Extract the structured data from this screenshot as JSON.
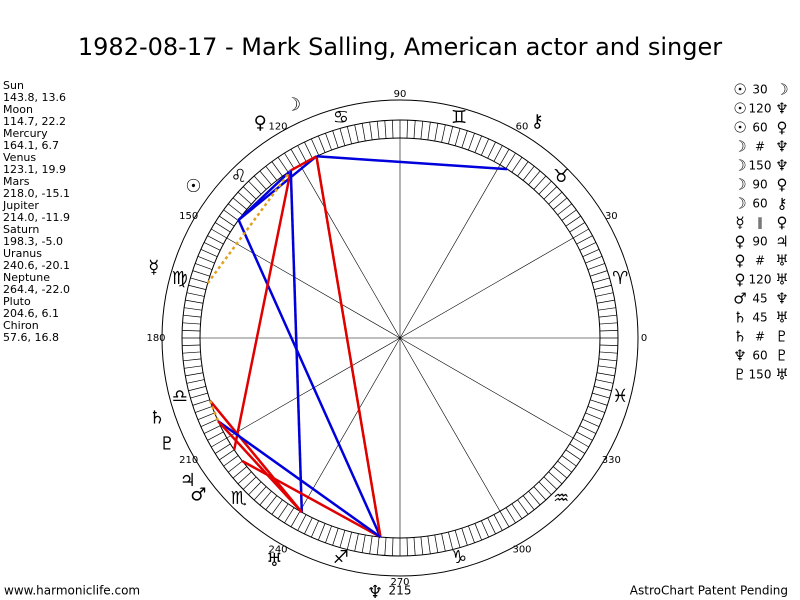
{
  "title": "1982-08-17 - Mark Salling, American actor and singer",
  "planets": [
    {
      "name": "Sun",
      "glyph": "☉",
      "position": "143.8, 13.6"
    },
    {
      "name": "Moon",
      "glyph": "☽",
      "position": "114.7, 22.2"
    },
    {
      "name": "Mercury",
      "glyph": "☿",
      "position": "164.1, 6.7"
    },
    {
      "name": "Venus",
      "glyph": "♀",
      "position": "123.1, 19.9"
    },
    {
      "name": "Mars",
      "glyph": "♂",
      "position": "218.0, -15.1"
    },
    {
      "name": "Jupiter",
      "glyph": "♃",
      "position": "214.0, -11.9"
    },
    {
      "name": "Saturn",
      "glyph": "♄",
      "position": "198.3, -5.0"
    },
    {
      "name": "Uranus",
      "glyph": "♅",
      "position": "240.6, -20.1"
    },
    {
      "name": "Neptune",
      "glyph": "♆",
      "position": "264.4, -22.0"
    },
    {
      "name": "Pluto",
      "glyph": "♇",
      "position": "204.6, 6.1"
    },
    {
      "name": "Chiron",
      "glyph": "⚷",
      "position": "57.6, 16.8"
    }
  ],
  "node_glyph": "☊",
  "signs": [
    "♈",
    "♉",
    "♊",
    "♋",
    "♌",
    "♍",
    "♎",
    "♏",
    "♐",
    "♑",
    "♒",
    "♓"
  ],
  "degree_labels": [
    0,
    30,
    60,
    90,
    120,
    150,
    180,
    210,
    240,
    270,
    300,
    330
  ],
  "annotation": "215",
  "aspects": [
    {
      "a": "☉",
      "aspect": "30",
      "b": "☽"
    },
    {
      "a": "☉",
      "aspect": "120",
      "b": "♆"
    },
    {
      "a": "☉",
      "aspect": "60",
      "b": "♀"
    },
    {
      "a": "☽",
      "aspect": "#",
      "b": "♆"
    },
    {
      "a": "☽",
      "aspect": "150",
      "b": "♆"
    },
    {
      "a": "☽",
      "aspect": "90",
      "b": "♀"
    },
    {
      "a": "☽",
      "aspect": "60",
      "b": "⚷"
    },
    {
      "a": "☿",
      "aspect": "∥",
      "b": "♀"
    },
    {
      "a": "♀",
      "aspect": "90",
      "b": "♃"
    },
    {
      "a": "♀",
      "aspect": "#",
      "b": "♅"
    },
    {
      "a": "♀",
      "aspect": "120",
      "b": "♅"
    },
    {
      "a": "♂",
      "aspect": "45",
      "b": "♆"
    },
    {
      "a": "♄",
      "aspect": "45",
      "b": "♅"
    },
    {
      "a": "♄",
      "aspect": "#",
      "b": "♇"
    },
    {
      "a": "♆",
      "aspect": "60",
      "b": "♇"
    },
    {
      "a": "♇",
      "aspect": "150",
      "b": "♅"
    }
  ],
  "footer_left": "www.harmoniclife.com",
  "footer_right": "AstroChart Patent Pending"
}
